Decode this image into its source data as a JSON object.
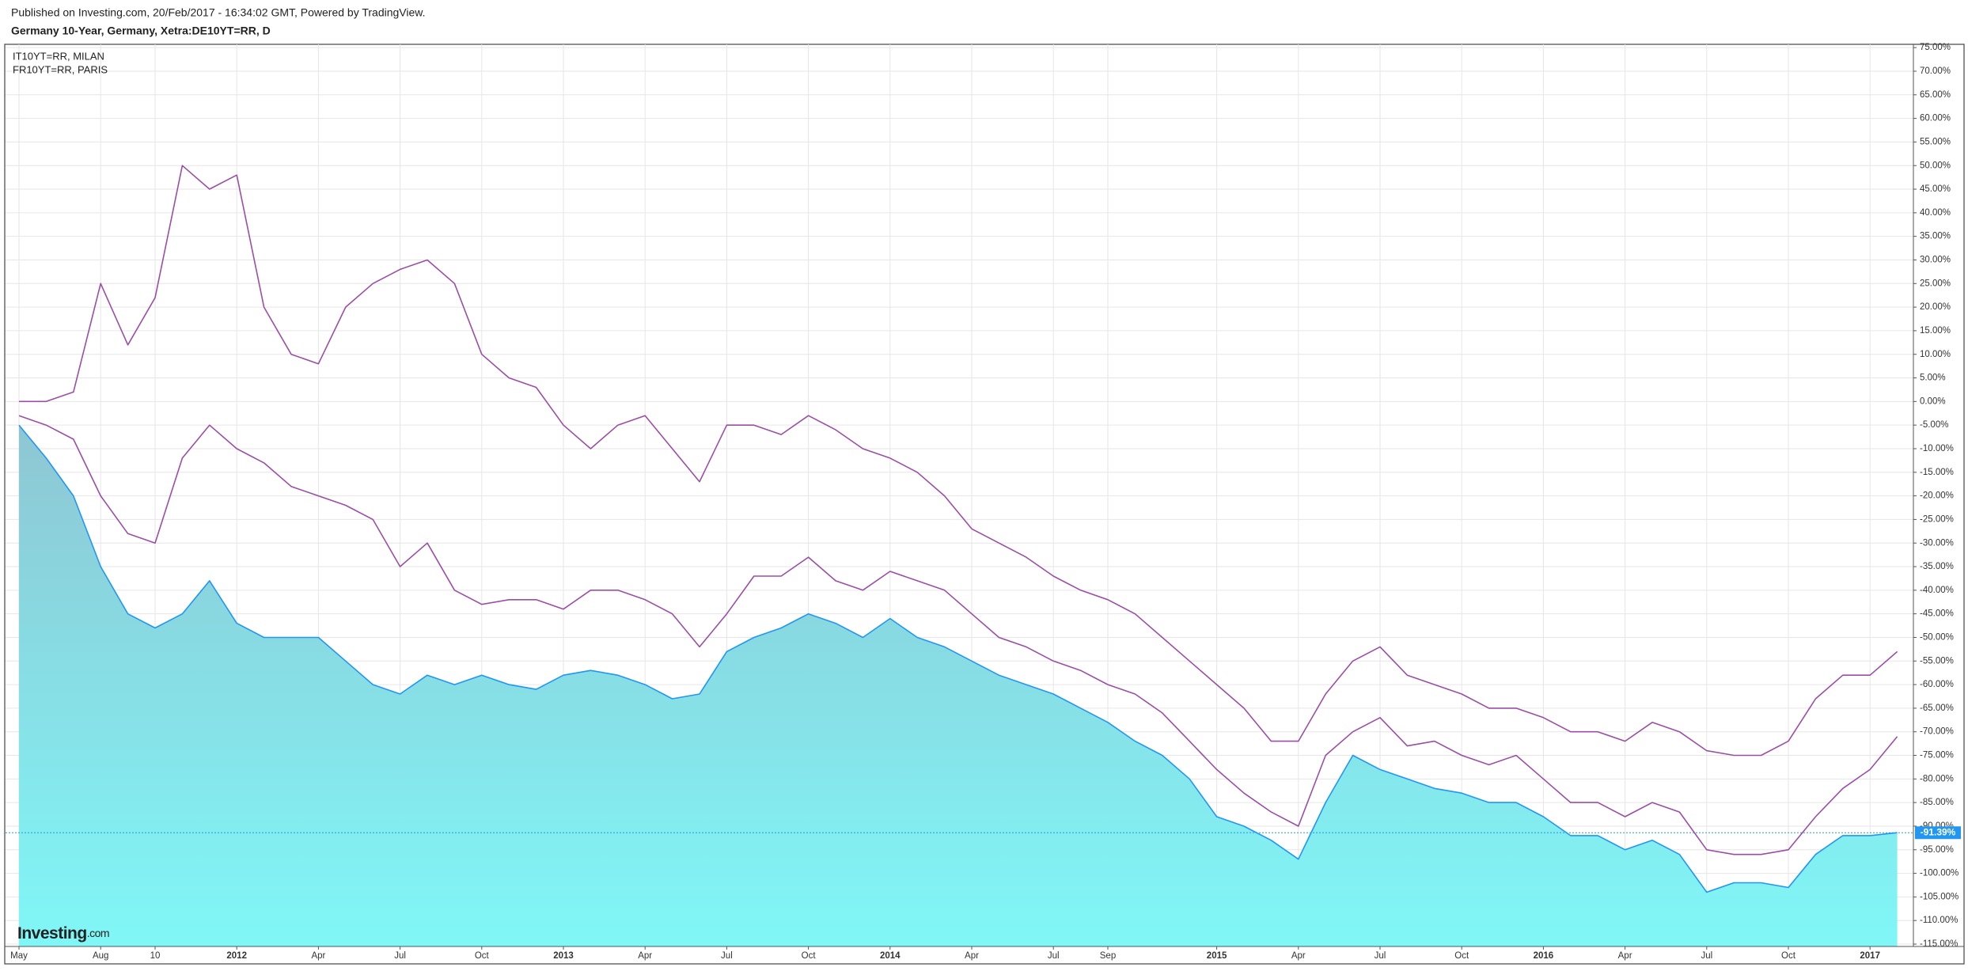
{
  "header": {
    "published": "Published on Investing.com, 20/Feb/2017 - 16:34:02 GMT, Powered by TradingView.",
    "title": "Germany 10-Year, Germany, Xetra:DE10YT=RR, D"
  },
  "logo": {
    "name": "Investing",
    "suffix": ".com"
  },
  "chart_data": {
    "type": "line",
    "x": [
      "2011-05",
      "2011-06",
      "2011-07",
      "2011-08",
      "2011-09",
      "2011-10",
      "2011-11",
      "2011-12",
      "2012-01",
      "2012-02",
      "2012-03",
      "2012-04",
      "2012-05",
      "2012-06",
      "2012-07",
      "2012-08",
      "2012-09",
      "2012-10",
      "2012-11",
      "2012-12",
      "2013-01",
      "2013-02",
      "2013-03",
      "2013-04",
      "2013-05",
      "2013-06",
      "2013-07",
      "2013-08",
      "2013-09",
      "2013-10",
      "2013-11",
      "2013-12",
      "2014-01",
      "2014-02",
      "2014-03",
      "2014-04",
      "2014-05",
      "2014-06",
      "2014-07",
      "2014-08",
      "2014-09",
      "2014-10",
      "2014-11",
      "2014-12",
      "2015-01",
      "2015-02",
      "2015-03",
      "2015-04",
      "2015-05",
      "2015-06",
      "2015-07",
      "2015-08",
      "2015-09",
      "2015-10",
      "2015-11",
      "2015-12",
      "2016-01",
      "2016-02",
      "2016-03",
      "2016-04",
      "2016-05",
      "2016-06",
      "2016-07",
      "2016-08",
      "2016-09",
      "2016-10",
      "2016-11",
      "2016-12",
      "2017-01",
      "2017-02"
    ],
    "series": [
      {
        "color": "#2196f3",
        "fill": true,
        "values": [
          -5,
          -12,
          -20,
          -35,
          -45,
          -48,
          -45,
          -38,
          -47,
          -50,
          -50,
          -50,
          -55,
          -60,
          -62,
          -58,
          -60,
          -58,
          -60,
          -61,
          -58,
          -57,
          -58,
          -60,
          -63,
          -62,
          -53,
          -50,
          -48,
          -45,
          -47,
          -50,
          -46,
          -50,
          -52,
          -55,
          -58,
          -60,
          -62,
          -65,
          -68,
          -72,
          -75,
          -80,
          -88,
          -90,
          -93,
          -97,
          -85,
          -75,
          -78,
          -80,
          -82,
          -83,
          -85,
          -85,
          -88,
          -92,
          -92,
          -95,
          -93,
          -96,
          -104,
          -102,
          -102,
          -103,
          -96,
          -92,
          -92,
          -91.39
        ]
      },
      {
        "name": "IT10YT=RR, MILAN",
        "color": "#9b4ea5",
        "values": [
          0,
          0,
          2,
          25,
          12,
          22,
          50,
          45,
          48,
          20,
          10,
          8,
          20,
          25,
          28,
          30,
          25,
          10,
          5,
          3,
          -5,
          -10,
          -5,
          -3,
          -10,
          -17,
          -5,
          -5,
          -7,
          -3,
          -6,
          -10,
          -12,
          -15,
          -20,
          -27,
          -30,
          -33,
          -37,
          -40,
          -42,
          -45,
          -50,
          -55,
          -60,
          -65,
          -72,
          -72,
          -62,
          -55,
          -52,
          -58,
          -60,
          -62,
          -65,
          -65,
          -67,
          -70,
          -70,
          -72,
          -68,
          -70,
          -74,
          -75,
          -75,
          -72,
          -63,
          -58,
          -58,
          -53
        ]
      },
      {
        "name": "FR10YT=RR, PARIS",
        "color": "#9b4ea5",
        "values": [
          -3,
          -5,
          -8,
          -20,
          -28,
          -30,
          -12,
          -5,
          -10,
          -13,
          -18,
          -20,
          -22,
          -25,
          -35,
          -30,
          -40,
          -43,
          -42,
          -42,
          -44,
          -40,
          -40,
          -42,
          -45,
          -52,
          -45,
          -37,
          -37,
          -33,
          -38,
          -40,
          -36,
          -38,
          -40,
          -45,
          -50,
          -52,
          -55,
          -57,
          -60,
          -62,
          -66,
          -72,
          -78,
          -83,
          -87,
          -90,
          -75,
          -70,
          -67,
          -73,
          -72,
          -75,
          -77,
          -75,
          -80,
          -85,
          -85,
          -88,
          -85,
          -87,
          -95,
          -96,
          -96,
          -95,
          -88,
          -82,
          -78,
          -71
        ]
      }
    ],
    "last_value_label": "-91.39%",
    "ylim": [
      -115.5,
      75.7
    ],
    "yticks": [
      {
        "value": 75,
        "label": "75.00%"
      },
      {
        "value": 70,
        "label": "70.00%"
      },
      {
        "value": 65,
        "label": "65.00%"
      },
      {
        "value": 60,
        "label": "60.00%"
      },
      {
        "value": 55,
        "label": "55.00%"
      },
      {
        "value": 50,
        "label": "50.00%"
      },
      {
        "value": 45,
        "label": "45.00%"
      },
      {
        "value": 40,
        "label": "40.00%"
      },
      {
        "value": 35,
        "label": "35.00%"
      },
      {
        "value": 30,
        "label": "30.00%"
      },
      {
        "value": 25,
        "label": "25.00%"
      },
      {
        "value": 20,
        "label": "20.00%"
      },
      {
        "value": 15,
        "label": "15.00%"
      },
      {
        "value": 10,
        "label": "10.00%"
      },
      {
        "value": 5,
        "label": "5.00%"
      },
      {
        "value": 0,
        "label": "0.00%"
      },
      {
        "value": -5,
        "label": "-5.00%"
      },
      {
        "value": -10,
        "label": "-10.00%"
      },
      {
        "value": -15,
        "label": "-15.00%"
      },
      {
        "value": -20,
        "label": "-20.00%"
      },
      {
        "value": -25,
        "label": "-25.00%"
      },
      {
        "value": -30,
        "label": "-30.00%"
      },
      {
        "value": -35,
        "label": "-35.00%"
      },
      {
        "value": -40,
        "label": "-40.00%"
      },
      {
        "value": -45,
        "label": "-45.00%"
      },
      {
        "value": -50,
        "label": "-50.00%"
      },
      {
        "value": -55,
        "label": "-55.00%"
      },
      {
        "value": -60,
        "label": "-60.00%"
      },
      {
        "value": -65,
        "label": "-65.00%"
      },
      {
        "value": -70,
        "label": "-70.00%"
      },
      {
        "value": -75,
        "label": "-75.00%"
      },
      {
        "value": -80,
        "label": "-80.00%"
      },
      {
        "value": -85,
        "label": "-85.00%"
      },
      {
        "value": -90,
        "label": "-90.00%"
      },
      {
        "value": -95,
        "label": "-95.00%"
      },
      {
        "value": -100,
        "label": "-100.00%"
      },
      {
        "value": -105,
        "label": "-105.00%"
      },
      {
        "value": -110,
        "label": "-110.00%"
      },
      {
        "value": -115,
        "label": "-115.00%"
      }
    ],
    "xticks": [
      {
        "value": "2011-05",
        "label": "May"
      },
      {
        "value": "2011-08",
        "label": "Aug"
      },
      {
        "value": "2011-10",
        "label": "10"
      },
      {
        "value": "2012-01",
        "label": "2012"
      },
      {
        "value": "2012-04",
        "label": "Apr"
      },
      {
        "value": "2012-07",
        "label": "Jul"
      },
      {
        "value": "2012-10",
        "label": "Oct"
      },
      {
        "value": "2013-01",
        "label": "2013"
      },
      {
        "value": "2013-04",
        "label": "Apr"
      },
      {
        "value": "2013-07",
        "label": "Jul"
      },
      {
        "value": "2013-10",
        "label": "Oct"
      },
      {
        "value": "2014-01",
        "label": "2014"
      },
      {
        "value": "2014-04",
        "label": "Apr"
      },
      {
        "value": "2014-07",
        "label": "Jul"
      },
      {
        "value": "2014-09",
        "label": "Sep"
      },
      {
        "value": "2015-01",
        "label": "2015"
      },
      {
        "value": "2015-04",
        "label": "Apr"
      },
      {
        "value": "2015-07",
        "label": "Jul"
      },
      {
        "value": "2015-10",
        "label": "Oct"
      },
      {
        "value": "2016-01",
        "label": "2016"
      },
      {
        "value": "2016-04",
        "label": "Apr"
      },
      {
        "value": "2016-07",
        "label": "Jul"
      },
      {
        "value": "2016-10",
        "label": "Oct"
      },
      {
        "value": "2017-01",
        "label": "2017"
      }
    ],
    "grid": true
  }
}
